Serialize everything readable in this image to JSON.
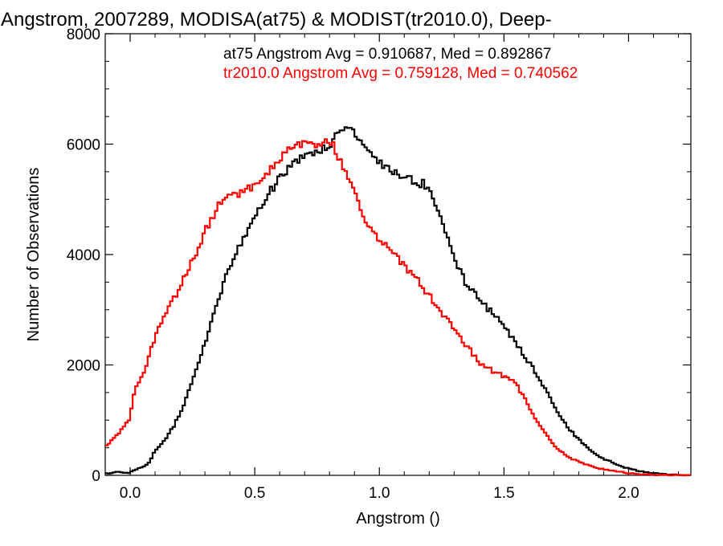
{
  "chart_data": {
    "type": "line",
    "title": "Angstrom, 2007289, MODISA(at75) & MODIST(tr2010.0), Deep-",
    "xlabel": "Angstrom ()",
    "ylabel": "Number of Observations",
    "xlim": [
      -0.1,
      2.25
    ],
    "ylim": [
      0,
      8000
    ],
    "x_ticks": [
      0.0,
      0.5,
      1.0,
      1.5,
      2.0
    ],
    "x_tick_labels": [
      "0.0",
      "0.5",
      "1.0",
      "1.5",
      "2.0"
    ],
    "y_ticks": [
      0,
      2000,
      4000,
      6000,
      8000
    ],
    "y_tick_labels": [
      "0",
      "2000",
      "4000",
      "6000",
      "8000"
    ],
    "grid": false,
    "legend_position": "top-right",
    "series": [
      {
        "name": "at75",
        "label": "at75 Angstrom Avg = 0.910687, Med = 0.892867",
        "color": "#000000",
        "points": [
          [
            -0.1,
            30
          ],
          [
            -0.05,
            60
          ],
          [
            0.0,
            50
          ],
          [
            0.05,
            150
          ],
          [
            0.08,
            250
          ],
          [
            0.1,
            450
          ],
          [
            0.15,
            700
          ],
          [
            0.2,
            1100
          ],
          [
            0.25,
            1700
          ],
          [
            0.3,
            2400
          ],
          [
            0.35,
            3100
          ],
          [
            0.4,
            3800
          ],
          [
            0.45,
            4250
          ],
          [
            0.5,
            4650
          ],
          [
            0.55,
            5050
          ],
          [
            0.6,
            5400
          ],
          [
            0.65,
            5650
          ],
          [
            0.7,
            5750
          ],
          [
            0.75,
            5850
          ],
          [
            0.8,
            6000
          ],
          [
            0.85,
            6250
          ],
          [
            0.88,
            6380
          ],
          [
            0.9,
            6200
          ],
          [
            0.95,
            5900
          ],
          [
            1.0,
            5650
          ],
          [
            1.05,
            5500
          ],
          [
            1.1,
            5400
          ],
          [
            1.15,
            5300
          ],
          [
            1.2,
            5250
          ],
          [
            1.25,
            4650
          ],
          [
            1.3,
            3950
          ],
          [
            1.35,
            3450
          ],
          [
            1.4,
            3200
          ],
          [
            1.45,
            2950
          ],
          [
            1.5,
            2700
          ],
          [
            1.55,
            2400
          ],
          [
            1.6,
            2050
          ],
          [
            1.65,
            1700
          ],
          [
            1.7,
            1250
          ],
          [
            1.75,
            900
          ],
          [
            1.8,
            650
          ],
          [
            1.85,
            450
          ],
          [
            1.9,
            300
          ],
          [
            1.95,
            200
          ],
          [
            2.0,
            120
          ],
          [
            2.05,
            70
          ],
          [
            2.1,
            40
          ],
          [
            2.15,
            20
          ],
          [
            2.2,
            10
          ],
          [
            2.25,
            5
          ]
        ]
      },
      {
        "name": "tr2010.0",
        "label": "tr2010.0 Angstrom Avg = 0.759128, Med = 0.740562",
        "color": "#ff0000",
        "points": [
          [
            -0.1,
            500
          ],
          [
            -0.05,
            750
          ],
          [
            0.0,
            1050
          ],
          [
            0.02,
            1600
          ],
          [
            0.05,
            1800
          ],
          [
            0.1,
            2500
          ],
          [
            0.15,
            3000
          ],
          [
            0.2,
            3400
          ],
          [
            0.25,
            3900
          ],
          [
            0.3,
            4400
          ],
          [
            0.35,
            4850
          ],
          [
            0.4,
            5050
          ],
          [
            0.45,
            5150
          ],
          [
            0.5,
            5250
          ],
          [
            0.55,
            5450
          ],
          [
            0.6,
            5750
          ],
          [
            0.65,
            5950
          ],
          [
            0.7,
            6050
          ],
          [
            0.75,
            6000
          ],
          [
            0.8,
            6100
          ],
          [
            0.85,
            5650
          ],
          [
            0.9,
            5100
          ],
          [
            0.95,
            4600
          ],
          [
            1.0,
            4250
          ],
          [
            1.05,
            4050
          ],
          [
            1.1,
            3800
          ],
          [
            1.15,
            3550
          ],
          [
            1.2,
            3250
          ],
          [
            1.25,
            2950
          ],
          [
            1.3,
            2650
          ],
          [
            1.35,
            2350
          ],
          [
            1.4,
            2050
          ],
          [
            1.45,
            1900
          ],
          [
            1.5,
            1800
          ],
          [
            1.55,
            1650
          ],
          [
            1.6,
            1250
          ],
          [
            1.65,
            850
          ],
          [
            1.7,
            550
          ],
          [
            1.75,
            350
          ],
          [
            1.8,
            250
          ],
          [
            1.85,
            170
          ],
          [
            1.9,
            110
          ],
          [
            1.95,
            70
          ],
          [
            2.0,
            40
          ],
          [
            2.05,
            20
          ],
          [
            2.1,
            10
          ],
          [
            2.15,
            5
          ],
          [
            2.2,
            3
          ],
          [
            2.25,
            2
          ]
        ]
      }
    ]
  }
}
